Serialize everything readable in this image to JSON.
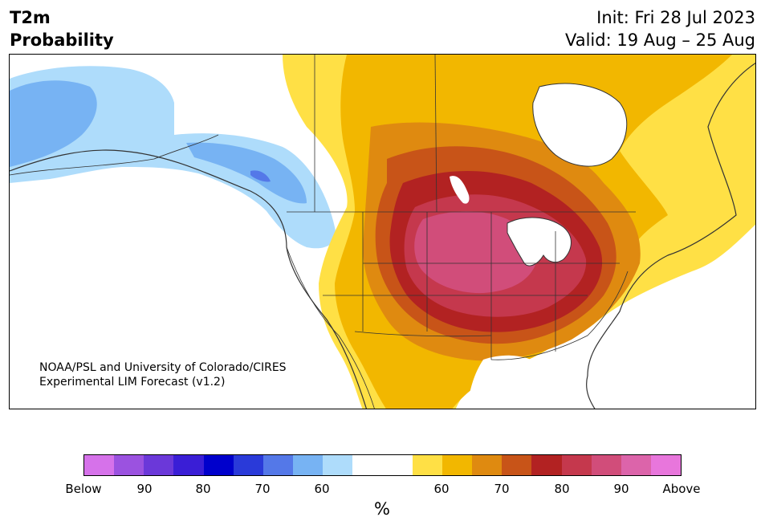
{
  "header": {
    "variable": "T2m",
    "product": "Probability",
    "init": "Init: Fri 28 Jul 2023",
    "valid": "Valid: 19 Aug – 25 Aug"
  },
  "credit": {
    "line1": "NOAA/PSL and University of Colorado/CIRES",
    "line2": "Experimental LIM Forecast (v1.2)"
  },
  "colorbar": {
    "colors": [
      "#d672ea",
      "#9b52e0",
      "#6b38d9",
      "#3a1ed6",
      "#0000cc",
      "#2a3ad9",
      "#5478e8",
      "#77b3f3",
      "#aedcfb",
      "#ffffff",
      "#ffffff",
      "#ffe045",
      "#f2b700",
      "#df8a10",
      "#c85418",
      "#b22222",
      "#c5384d",
      "#d14d7a",
      "#dc64aa",
      "#e876dc"
    ],
    "tick_labels": [
      "Below",
      "90",
      "80",
      "70",
      "60",
      "60",
      "70",
      "80",
      "90",
      "Above"
    ],
    "unit": "%"
  },
  "map": {
    "region": "North America",
    "colors": {
      "cool_light": "#aedcfb",
      "cool_mid": "#77b3f3",
      "cool_dark": "#5478e8",
      "warm_1": "#ffe045",
      "warm_2": "#f2b700",
      "warm_3": "#df8a10",
      "warm_4": "#c85418",
      "warm_5": "#b22222",
      "warm_6": "#c5384d",
      "warm_7": "#d14d7a",
      "coast": "#333333"
    }
  }
}
